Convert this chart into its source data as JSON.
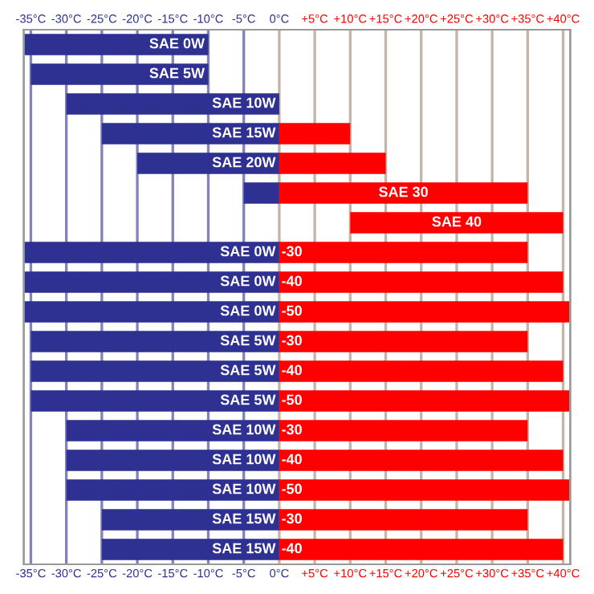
{
  "chart_data": {
    "type": "bar",
    "orientation": "horizontal",
    "categories": [
      "SAE 0W",
      "SAE 5W",
      "SAE 10W",
      "SAE 15W",
      "SAE 20W",
      "SAE 30",
      "SAE 40",
      "SAE 0W",
      "SAE 0W",
      "SAE 0W",
      "SAE 5W",
      "SAE 5W",
      "SAE 5W",
      "SAE 10W",
      "SAE 10W",
      "SAE 10W",
      "SAE 15W",
      "SAE 15W"
    ],
    "annotations": [
      "-30",
      "-40",
      "-50",
      "-30",
      "-40",
      "-50",
      "-30",
      "-40",
      "-50",
      "-30",
      "-40"
    ],
    "series": [
      {
        "color": "#2e3192",
        "base": [
          -36,
          -35,
          -30,
          -25,
          -20,
          -5,
          null,
          -36,
          -36,
          -36,
          -35,
          -35,
          -35,
          -30,
          -30,
          -30,
          -25,
          -25
        ],
        "values": [
          26,
          25,
          30,
          25,
          20,
          5,
          null,
          36,
          36,
          36,
          35,
          35,
          35,
          30,
          30,
          30,
          25,
          25
        ]
      },
      {
        "color": "#ff0000",
        "base": [
          null,
          null,
          null,
          0,
          0,
          0,
          10,
          0,
          0,
          0,
          0,
          0,
          0,
          0,
          0,
          0,
          0,
          0
        ],
        "values": [
          null,
          null,
          null,
          10,
          15,
          35,
          30,
          35,
          40,
          41,
          35,
          40,
          41,
          35,
          40,
          41,
          35,
          40
        ]
      }
    ],
    "xlim": [
      -36,
      41
    ],
    "xticks": [
      {
        "value": -35,
        "label": "-35°C"
      },
      {
        "value": -30,
        "label": "-30°C"
      },
      {
        "value": -25,
        "label": "-25°C"
      },
      {
        "value": -20,
        "label": "-20°C"
      },
      {
        "value": -15,
        "label": "-15°C"
      },
      {
        "value": -10,
        "label": "-10°C"
      },
      {
        "value": -5,
        "label": "-5°C"
      },
      {
        "value": 0,
        "label": "0°C"
      },
      {
        "value": 5,
        "label": "+5°C"
      },
      {
        "value": 10,
        "label": "+10°C"
      },
      {
        "value": 15,
        "label": "+15°C"
      },
      {
        "value": 20,
        "label": "+20°C"
      },
      {
        "value": 25,
        "label": "+25°C"
      },
      {
        "value": 30,
        "label": "+30°C"
      },
      {
        "value": 35,
        "label": "+35°C"
      },
      {
        "value": 40,
        "label": "+40°C"
      }
    ],
    "x2lim": [
      -36,
      41
    ],
    "x2ticks": [
      {
        "value": -35,
        "label": "-35°C"
      },
      {
        "value": -30,
        "label": "-30°C"
      },
      {
        "value": -25,
        "label": "-25°C"
      },
      {
        "value": -20,
        "label": "-20°C"
      },
      {
        "value": -15,
        "label": "-15°C"
      },
      {
        "value": -10,
        "label": "-10°C"
      },
      {
        "value": -5,
        "label": "-5°C"
      },
      {
        "value": 0,
        "label": "0°C"
      },
      {
        "value": 5,
        "label": "+5°C"
      },
      {
        "value": 10,
        "label": "+10°C"
      },
      {
        "value": 15,
        "label": "+15°C"
      },
      {
        "value": 20,
        "label": "+20°C"
      },
      {
        "value": 25,
        "label": "+25°C"
      },
      {
        "value": 30,
        "label": "+30°C"
      },
      {
        "value": 35,
        "label": "+35°C"
      },
      {
        "value": 40,
        "label": "+40°C"
      }
    ],
    "grid": "x"
  }
}
